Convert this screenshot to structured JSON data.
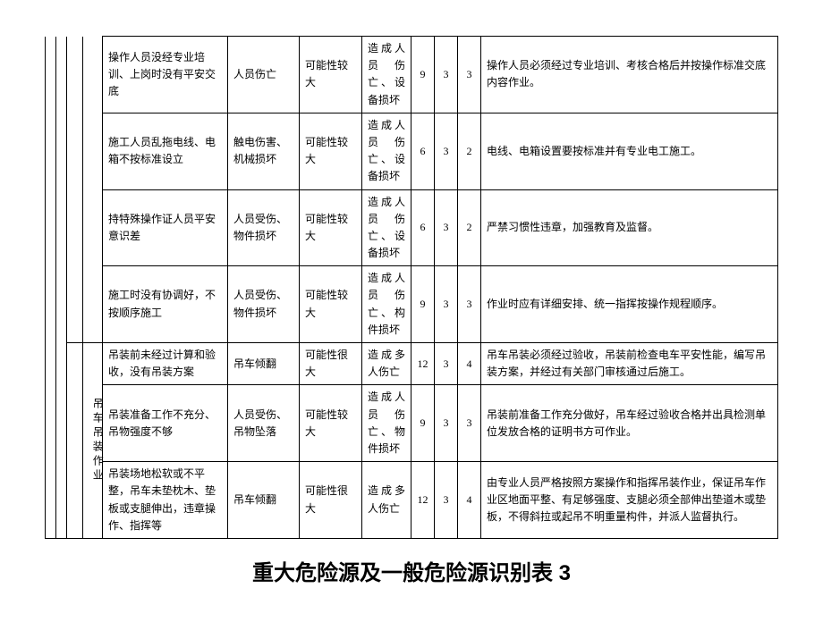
{
  "category_label": "吊车吊装作业",
  "rows": [
    {
      "desc": "操作人员没经专业培训、上岗时没有平安交底",
      "cons1": "人员伤亡",
      "prob": "可能性较大",
      "cons2": "造成人员伤亡、设备损坏",
      "n1": "9",
      "n2": "3",
      "n3": "3",
      "meas": "操作人员必须经过专业培训、考核合格后并按操作标准交底内容作业。"
    },
    {
      "desc": "施工人员乱拖电线、电箱不按标准设立",
      "cons1": "触电伤害、机械损坏",
      "prob": "可能性较大",
      "cons2": "造成人员伤亡、设备损坏",
      "n1": "6",
      "n2": "3",
      "n3": "2",
      "meas": "电线、电箱设置要按标准并有专业电工施工。"
    },
    {
      "desc": "持特殊操作证人员平安意识差",
      "cons1": "人员受伤、物件损坏",
      "prob": "可能性较大",
      "cons2": "造成人员伤亡、设备损坏",
      "n1": "6",
      "n2": "3",
      "n3": "2",
      "meas": "严禁习惯性违章，加强教育及监督。"
    },
    {
      "desc": "施工时没有协调好，不按顺序施工",
      "cons1": "人员受伤、物件损坏",
      "prob": "可能性较大",
      "cons2": "造成人员伤亡、构件损坏",
      "n1": "9",
      "n2": "3",
      "n3": "3",
      "meas": "作业时应有详细安排、统一指挥按操作规程顺序。"
    },
    {
      "desc": "吊装前未经过计算和验收，没有吊装方案",
      "cons1": "吊车倾翻",
      "prob": "可能性很大",
      "cons2": "造成多人伤亡",
      "n1": "12",
      "n2": "3",
      "n3": "4",
      "meas": "吊车吊装必须经过验收，吊装前检查电车平安性能，编写吊装方案，并经过有关部门审核通过后施工。"
    },
    {
      "desc": "吊装准备工作不充分、吊物强度不够",
      "cons1": "人员受伤、吊物坠落",
      "prob": "可能性较大",
      "cons2": "造成人员伤亡、物件损坏",
      "n1": "9",
      "n2": "3",
      "n3": "3",
      "meas": "吊装前准备工作充分做好，吊车经过验收合格并出具检测单位发放合格的证明书方可作业。"
    },
    {
      "desc": "吊装场地松软或不平整，吊车未垫枕木、垫板或支腿伸出，违章操作、指挥等",
      "cons1": "吊车倾翻",
      "prob": "可能性很大",
      "cons2": "造成多人伤亡",
      "n1": "12",
      "n2": "3",
      "n3": "4",
      "meas": "由专业人员严格按照方案操作和指挥吊装作业，保证吊车作业区地面平整、有足够强度、支腿必须全部伸出垫道木或垫板，不得斜拉或起吊不明重量构件，并派人监督执行。"
    }
  ],
  "title": "重大危险源及一般危险源识别表 3"
}
